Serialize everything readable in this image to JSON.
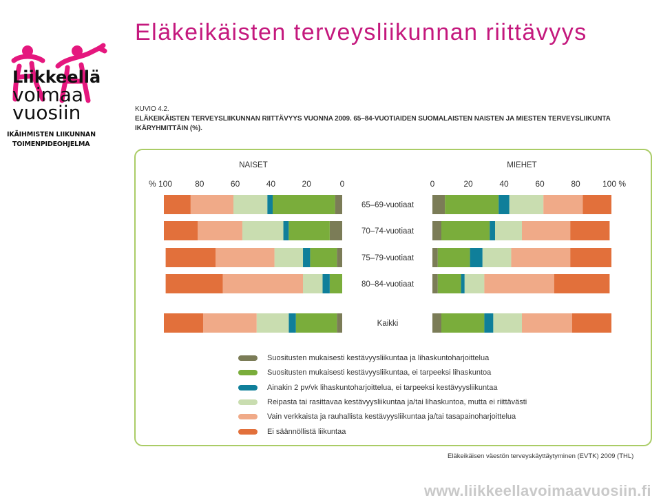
{
  "title": "Eläkeikäisten terveysliikunnan riittävyys",
  "logo": {
    "line1": "Liikkeellä",
    "line2": "voimaa",
    "line3": "vuosiin",
    "sub1": "IKÄIHMISTEN LIIKUNNAN",
    "sub2": "TOIMENPIDEOHJELMA",
    "color": "#e5177e"
  },
  "figure": {
    "number": "KUVIO 4.2.",
    "caption_line1": "ELÄKEIKÄISTEN TERVEYSLIIKUNNAN RIITTÄVYYS VUONNA 2009. 65–84-VUOTIAIDEN SUOMALAISTEN NAISTEN JA MIESTEN TERVEYSLIIKUNTA",
    "caption_line2": "IKÄRYHMITTÄIN (%)."
  },
  "source": "Eläkeikäisen väestön terveyskäyttäytyminen (EVTK) 2009 (THL)",
  "website": "www.liikkeellavoimaavuosiin.fi",
  "chart_data": {
    "type": "bar",
    "orientation": "horizontal-stacked-butterfly",
    "panel_titles": {
      "left": "NAISET",
      "right": "MIEHET"
    },
    "left_ticks": [
      "% 100",
      "80",
      "60",
      "40",
      "20",
      "0"
    ],
    "right_ticks": [
      "0",
      "20",
      "40",
      "60",
      "80",
      "100 %"
    ],
    "xlim": [
      0,
      100
    ],
    "categories": [
      "65–69-vuotiaat",
      "70–74-vuotiaat",
      "75–79-vuotiaat",
      "80–84-vuotiaat",
      "Kaikki"
    ],
    "series": [
      {
        "name": "Suositusten mukaisesti kestävyysliikuntaa ja lihaskuntoharjoittelua",
        "color": "#7b7c57",
        "naiset": [
          4,
          7,
          3,
          0,
          3
        ],
        "miehet": [
          7,
          5,
          3,
          3,
          5
        ]
      },
      {
        "name": "Suositusten mukaisesti kestävyysliikuntaa, ei tarpeeksi lihaskuntoa",
        "color": "#7aad3b",
        "naiset": [
          35,
          23,
          15,
          7,
          23
        ],
        "miehet": [
          30,
          27,
          18,
          13,
          24
        ]
      },
      {
        "name": "Ainakin 2 pv/vk lihaskuntoharjoittelua, ei tarpeeksi kestävyysliikuntaa",
        "color": "#0f7f9a",
        "naiset": [
          3,
          3,
          4,
          4,
          4
        ],
        "miehet": [
          6,
          3,
          7,
          2,
          5
        ]
      },
      {
        "name": "Reipasta tai rasittavaa kestävyysliikuntaa ja/tai lihaskuntoa, mutta ei riittävästi",
        "color": "#c9ddb0",
        "naiset": [
          19,
          23,
          16,
          11,
          18
        ],
        "miehet": [
          19,
          15,
          16,
          11,
          16
        ]
      },
      {
        "name": "Vain verkkaista ja rauhallista kestävyysliikuntaa ja/tai tasapainoharjoittelua",
        "color": "#f0aa88",
        "naiset": [
          24,
          25,
          33,
          45,
          30
        ],
        "miehet": [
          22,
          27,
          33,
          39,
          28
        ]
      },
      {
        "name": "Ei säännöllistä liikuntaa",
        "color": "#e2703b",
        "naiset": [
          15,
          19,
          28,
          32,
          22
        ],
        "miehet": [
          16,
          22,
          23,
          31,
          22
        ]
      }
    ]
  }
}
